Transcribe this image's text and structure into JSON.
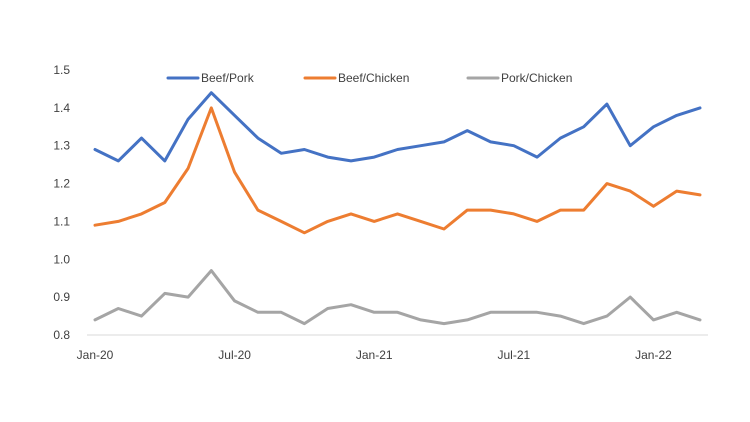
{
  "chart_data": {
    "type": "line",
    "title": "",
    "xlabel": "",
    "ylabel": "",
    "ylim": [
      0.8,
      1.5
    ],
    "yticks": [
      "1.5",
      "1.4",
      "1.3",
      "1.2",
      "1.1",
      "1.0",
      "0.9",
      "0.8"
    ],
    "x": [
      "Jan-20",
      "Feb-20",
      "Mar-20",
      "Apr-20",
      "May-20",
      "Jun-20",
      "Jul-20",
      "Aug-20",
      "Sep-20",
      "Oct-20",
      "Nov-20",
      "Dec-20",
      "Jan-21",
      "Feb-21",
      "Mar-21",
      "Apr-21",
      "May-21",
      "Jun-21",
      "Jul-21",
      "Aug-21",
      "Sep-21",
      "Oct-21",
      "Nov-21",
      "Dec-21",
      "Jan-22",
      "Feb-22",
      "Mar-22"
    ],
    "xtick_labels": [
      "Jan-20",
      "Jul-20",
      "Jan-21",
      "Jul-21",
      "Jan-22"
    ],
    "grid": false,
    "legend_position": "top",
    "series": [
      {
        "name": "Beef/Pork",
        "color": "#4472C4",
        "values": [
          1.29,
          1.26,
          1.32,
          1.26,
          1.37,
          1.44,
          1.38,
          1.32,
          1.28,
          1.29,
          1.27,
          1.26,
          1.27,
          1.29,
          1.3,
          1.31,
          1.34,
          1.31,
          1.3,
          1.27,
          1.32,
          1.35,
          1.41,
          1.3,
          1.35,
          1.38,
          1.4
        ]
      },
      {
        "name": "Beef/Chicken",
        "color": "#ED7D31",
        "values": [
          1.09,
          1.1,
          1.12,
          1.15,
          1.24,
          1.4,
          1.23,
          1.13,
          1.1,
          1.07,
          1.1,
          1.12,
          1.1,
          1.12,
          1.1,
          1.08,
          1.13,
          1.13,
          1.12,
          1.1,
          1.13,
          1.13,
          1.2,
          1.18,
          1.14,
          1.18,
          1.17
        ]
      },
      {
        "name": "Pork/Chicken",
        "color": "#A5A5A5",
        "values": [
          0.84,
          0.87,
          0.85,
          0.91,
          0.9,
          0.97,
          0.89,
          0.86,
          0.86,
          0.83,
          0.87,
          0.88,
          0.86,
          0.86,
          0.84,
          0.83,
          0.84,
          0.86,
          0.86,
          0.86,
          0.85,
          0.83,
          0.85,
          0.9,
          0.84,
          0.86,
          0.84
        ]
      }
    ]
  }
}
